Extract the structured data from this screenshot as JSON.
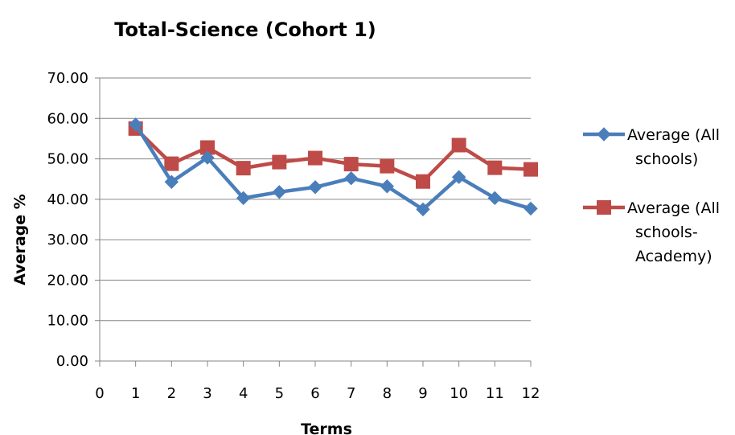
{
  "chart_data": {
    "type": "line",
    "title": "Total-Science (Cohort 1)",
    "xlabel": "Terms",
    "ylabel": "Average %",
    "x": [
      1,
      2,
      3,
      4,
      5,
      6,
      7,
      8,
      9,
      10,
      11,
      12
    ],
    "xlim": [
      0,
      12
    ],
    "ylim": [
      0,
      70
    ],
    "x_ticks": [
      "0",
      "1",
      "2",
      "3",
      "4",
      "5",
      "6",
      "7",
      "8",
      "9",
      "10",
      "11",
      "12"
    ],
    "y_ticks": [
      "0.00",
      "10.00",
      "20.00",
      "30.00",
      "40.00",
      "50.00",
      "60.00",
      "70.00"
    ],
    "grid": "horizontal",
    "legend_position": "right",
    "series": [
      {
        "name": "Average (All schools)",
        "legend_lines": [
          "Average (All",
          "schools)"
        ],
        "color": "#4a7ebb",
        "marker": "diamond",
        "values": [
          58.5,
          44.3,
          50.3,
          40.3,
          41.8,
          43.0,
          45.2,
          43.2,
          37.5,
          45.5,
          40.3,
          37.7
        ]
      },
      {
        "name": "Average (All schools-Academy)",
        "legend_lines": [
          "Average (All",
          "schools-",
          "Academy)"
        ],
        "color": "#be4b48",
        "marker": "square",
        "values": [
          57.5,
          48.8,
          52.8,
          47.7,
          49.2,
          50.2,
          48.7,
          48.2,
          44.4,
          53.4,
          47.8,
          47.4
        ]
      }
    ]
  }
}
